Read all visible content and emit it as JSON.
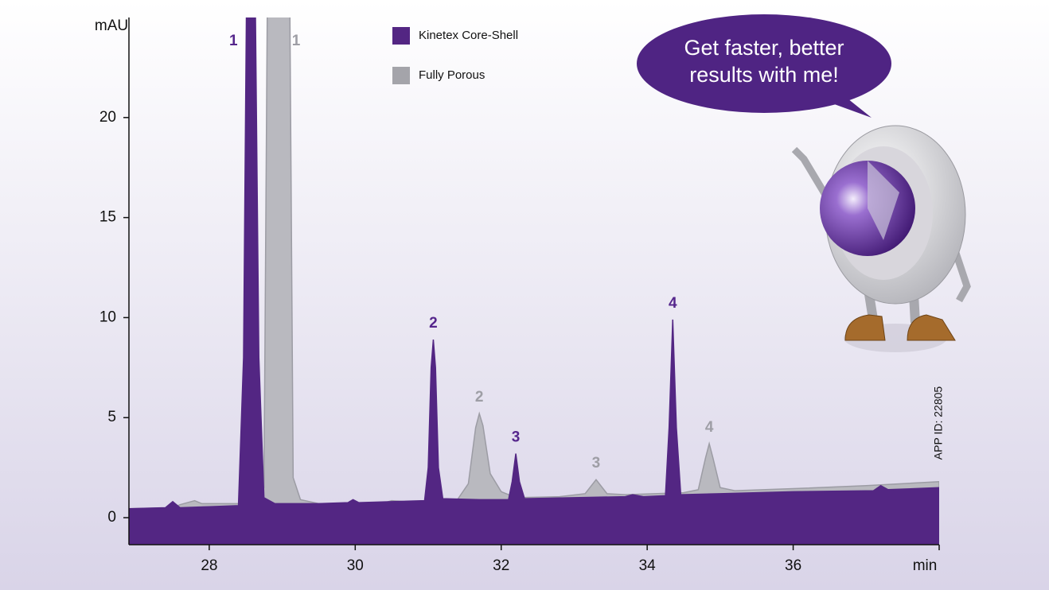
{
  "chart_data": {
    "type": "area",
    "y_label": "mAU",
    "x_label": "min",
    "xlim": [
      26.9,
      38
    ],
    "xticks": [
      28,
      30,
      32,
      34,
      36
    ],
    "ylim": [
      -1.35,
      25
    ],
    "yticks": [
      0,
      5,
      10,
      15,
      20
    ],
    "series": [
      {
        "name": "Kinetex Core-Shell",
        "color": "#532683",
        "x": [
          26.9,
          27.4,
          27.5,
          27.6,
          28.0,
          28.4,
          28.47,
          28.52,
          28.62,
          28.68,
          28.75,
          28.9,
          29.5,
          29.9,
          29.97,
          30.05,
          30.5,
          30.95,
          31.0,
          31.04,
          31.07,
          31.1,
          31.14,
          31.2,
          31.7,
          32.1,
          32.15,
          32.2,
          32.25,
          32.32,
          33.0,
          33.7,
          33.8,
          33.95,
          34.25,
          34.3,
          34.35,
          34.4,
          34.46,
          35.0,
          36.0,
          37.1,
          37.2,
          37.3,
          38.0
        ],
        "values": [
          0.45,
          0.5,
          0.8,
          0.5,
          0.55,
          0.6,
          8,
          30,
          30,
          8,
          1.0,
          0.7,
          0.7,
          0.75,
          0.9,
          0.75,
          0.8,
          0.85,
          2.5,
          7.5,
          8.9,
          7.5,
          2.5,
          0.95,
          0.9,
          0.9,
          1.8,
          3.2,
          1.8,
          0.95,
          1.0,
          1.05,
          1.15,
          1.05,
          1.1,
          4.5,
          9.9,
          4.5,
          1.15,
          1.2,
          1.3,
          1.35,
          1.6,
          1.4,
          1.5
        ]
      },
      {
        "name": "Fully Porous",
        "color": "#b9b9bf",
        "x": [
          26.9,
          27.5,
          27.6,
          27.8,
          27.9,
          28.4,
          28.75,
          28.8,
          29.1,
          29.15,
          29.25,
          29.5,
          30.4,
          30.5,
          30.7,
          31.4,
          31.55,
          31.65,
          31.7,
          31.75,
          31.85,
          32.0,
          32.2,
          32.8,
          33.15,
          33.3,
          33.45,
          33.7,
          34.5,
          34.7,
          34.8,
          34.85,
          34.9,
          35.0,
          35.2,
          36.0,
          37.0,
          38.0
        ],
        "values": [
          0.45,
          0.5,
          0.65,
          0.85,
          0.7,
          0.7,
          1.5,
          28,
          28,
          2,
          0.9,
          0.7,
          0.75,
          0.85,
          0.8,
          0.9,
          1.7,
          4.5,
          5.2,
          4.6,
          2.2,
          1.3,
          1.0,
          1.05,
          1.2,
          1.9,
          1.2,
          1.15,
          1.25,
          1.4,
          3.0,
          3.7,
          3.0,
          1.5,
          1.35,
          1.45,
          1.6,
          1.8
        ]
      }
    ],
    "annotations": [
      {
        "text": "1",
        "x": 28.55,
        "series": 0
      },
      {
        "text": "1",
        "x": 28.95,
        "series": 1
      },
      {
        "text": "2",
        "x": 31.07,
        "series": 0
      },
      {
        "text": "2",
        "x": 31.7,
        "series": 1
      },
      {
        "text": "3",
        "x": 32.2,
        "series": 0
      },
      {
        "text": "3",
        "x": 33.3,
        "series": 1
      },
      {
        "text": "4",
        "x": 34.35,
        "series": 0
      },
      {
        "text": "4",
        "x": 34.85,
        "series": 1
      }
    ],
    "legend": "top",
    "bubble_text": [
      "Get faster, better",
      "results with me!"
    ],
    "app_id": "APP ID: 22805"
  }
}
